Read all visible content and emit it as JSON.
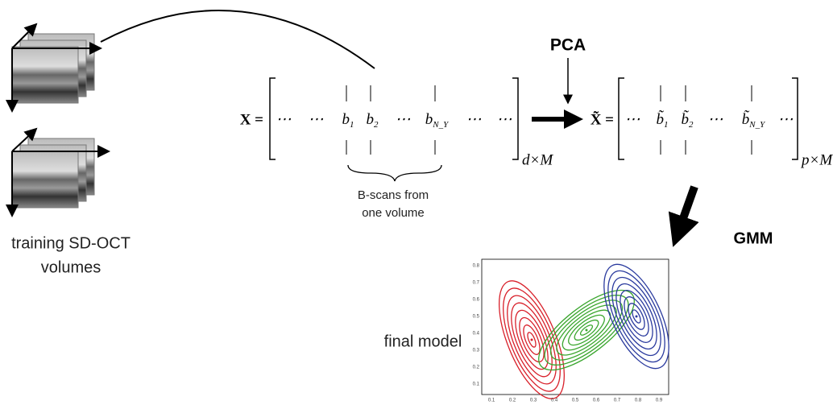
{
  "labels": {
    "pca": "PCA",
    "gmm": "GMM",
    "training": [
      "training SD-OCT",
      "volumes"
    ],
    "bscans": [
      "B-scans from",
      "one volume"
    ],
    "final_model": "final model"
  },
  "matrix_x": {
    "lhs": "X =",
    "entries": [
      {
        "text": "⋯"
      },
      {
        "text": "⋯"
      },
      {
        "text": "b",
        "sub": "1"
      },
      {
        "text": "b",
        "sub": "2"
      },
      {
        "text": "⋯"
      },
      {
        "text": "b",
        "sub": "N_Y"
      },
      {
        "text": "⋯"
      },
      {
        "text": "⋯"
      }
    ],
    "size": "d×M"
  },
  "matrix_xt": {
    "lhs": "X̃ =",
    "entries": [
      {
        "text": "⋯"
      },
      {
        "text": "b̃",
        "sub": "1"
      },
      {
        "text": "b̃",
        "sub": "2"
      },
      {
        "text": "⋯"
      },
      {
        "text": "b̃",
        "sub": "N_Y"
      },
      {
        "text": "⋯"
      }
    ],
    "size": "p×M"
  },
  "plot": {
    "xticks": [
      "0.1",
      "0.2",
      "0.3",
      "0.4",
      "0.5",
      "0.6",
      "0.7",
      "0.8",
      "0.9"
    ],
    "yticks": [
      "0.8",
      "0.7",
      "0.6",
      "0.5",
      "0.4",
      "0.3",
      "0.2",
      "0.1"
    ]
  }
}
